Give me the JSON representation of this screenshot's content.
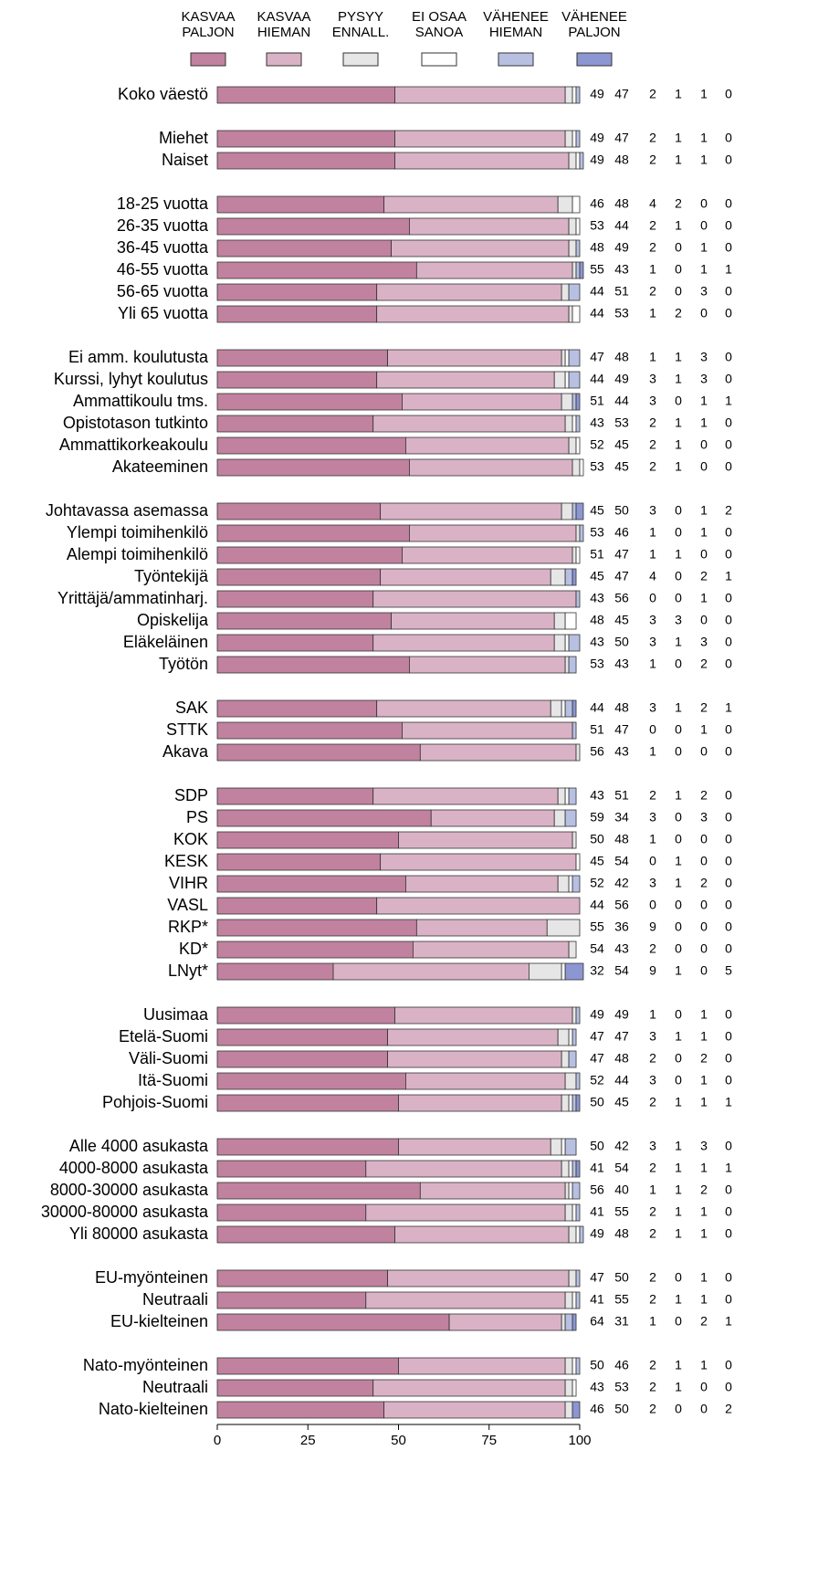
{
  "chart_data": {
    "type": "stacked-bar-horizontal",
    "categories": [
      "Koko väestö",
      "Miehet",
      "Naiset",
      "18-25 vuotta",
      "26-35 vuotta",
      "36-45 vuotta",
      "46-55 vuotta",
      "56-65 vuotta",
      "Yli 65 vuotta",
      "Ei amm. koulutusta",
      "Kurssi, lyhyt koulutus",
      "Ammattikoulu tms.",
      "Opistotason tutkinto",
      "Ammattikorkeakoulu",
      "Akateeminen",
      "Johtavassa asemassa",
      "Ylempi toimihenkilö",
      "Alempi toimihenkilö",
      "Työntekijä",
      "Yrittäjä/ammatinharj.",
      "Opiskelija",
      "Eläkeläinen",
      "Työtön",
      "SAK",
      "STTK",
      "Akava",
      "SDP",
      "PS",
      "KOK",
      "KESK",
      "VIHR",
      "VASL",
      "RKP*",
      "KD*",
      "LNyt*",
      "Uusimaa",
      "Etelä-Suomi",
      "Väli-Suomi",
      "Itä-Suomi",
      "Pohjois-Suomi",
      "Alle 4000 asukasta",
      "4000-8000 asukasta",
      "8000-30000 asukasta",
      "30000-80000 asukasta",
      "Yli 80000 asukasta",
      "EU-myönteinen",
      "Neutraali",
      "EU-kielteinen",
      "Nato-myönteinen",
      "Neutraali",
      "Nato-kielteinen"
    ],
    "series": [
      {
        "name": "KASVAA PALJON",
        "color": "#c0829f",
        "values": [
          49,
          49,
          49,
          46,
          53,
          48,
          55,
          44,
          44,
          47,
          44,
          51,
          43,
          52,
          53,
          45,
          53,
          51,
          45,
          43,
          48,
          43,
          53,
          44,
          51,
          56,
          43,
          59,
          50,
          45,
          52,
          44,
          55,
          54,
          32,
          49,
          47,
          47,
          52,
          50,
          50,
          41,
          56,
          41,
          49,
          47,
          41,
          64,
          50,
          43,
          46
        ]
      },
      {
        "name": "KASVAA HIEMAN",
        "color": "#dab2c6",
        "values": [
          47,
          47,
          48,
          48,
          44,
          49,
          43,
          51,
          53,
          48,
          49,
          44,
          53,
          45,
          45,
          50,
          46,
          47,
          47,
          56,
          45,
          50,
          43,
          48,
          47,
          43,
          51,
          34,
          48,
          54,
          42,
          56,
          36,
          43,
          54,
          49,
          47,
          48,
          44,
          45,
          42,
          54,
          40,
          55,
          48,
          50,
          55,
          31,
          46,
          53,
          50
        ]
      },
      {
        "name": "PYSYY ENNALL.",
        "color": "#e6e6e6",
        "values": [
          2,
          2,
          2,
          4,
          2,
          2,
          1,
          2,
          1,
          1,
          3,
          3,
          2,
          2,
          2,
          3,
          1,
          1,
          4,
          0,
          3,
          3,
          1,
          3,
          0,
          1,
          2,
          3,
          1,
          0,
          3,
          0,
          9,
          2,
          9,
          1,
          3,
          2,
          3,
          2,
          3,
          2,
          1,
          2,
          2,
          2,
          2,
          1,
          2,
          2,
          2
        ]
      },
      {
        "name": "EI OSAA SANOA",
        "color": "#ffffff",
        "values": [
          1,
          1,
          1,
          2,
          1,
          0,
          0,
          0,
          2,
          1,
          1,
          0,
          1,
          1,
          1,
          0,
          0,
          1,
          0,
          0,
          3,
          1,
          0,
          1,
          0,
          0,
          1,
          0,
          0,
          1,
          1,
          0,
          0,
          0,
          1,
          0,
          1,
          0,
          0,
          1,
          1,
          1,
          1,
          1,
          1,
          0,
          1,
          0,
          1,
          1,
          0
        ]
      },
      {
        "name": "VÄHENEE HIEMAN",
        "color": "#b8c0e2",
        "values": [
          1,
          1,
          1,
          0,
          0,
          1,
          1,
          3,
          0,
          3,
          3,
          1,
          1,
          0,
          0,
          1,
          1,
          0,
          2,
          1,
          0,
          3,
          2,
          2,
          1,
          0,
          2,
          3,
          0,
          0,
          2,
          0,
          0,
          0,
          0,
          1,
          1,
          2,
          1,
          1,
          3,
          1,
          2,
          1,
          1,
          1,
          1,
          2,
          1,
          0,
          0
        ]
      },
      {
        "name": "VÄHENEE PALJON",
        "color": "#8c96d2",
        "values": [
          0,
          0,
          0,
          0,
          0,
          0,
          1,
          0,
          0,
          0,
          0,
          1,
          0,
          0,
          0,
          2,
          0,
          0,
          1,
          0,
          0,
          0,
          0,
          1,
          0,
          0,
          0,
          0,
          0,
          0,
          0,
          0,
          0,
          0,
          5,
          0,
          0,
          0,
          0,
          1,
          0,
          1,
          0,
          0,
          0,
          0,
          0,
          1,
          0,
          0,
          2
        ]
      }
    ],
    "xlim": [
      0,
      100
    ],
    "xticks": [
      0,
      25,
      50,
      75,
      100
    ]
  }
}
